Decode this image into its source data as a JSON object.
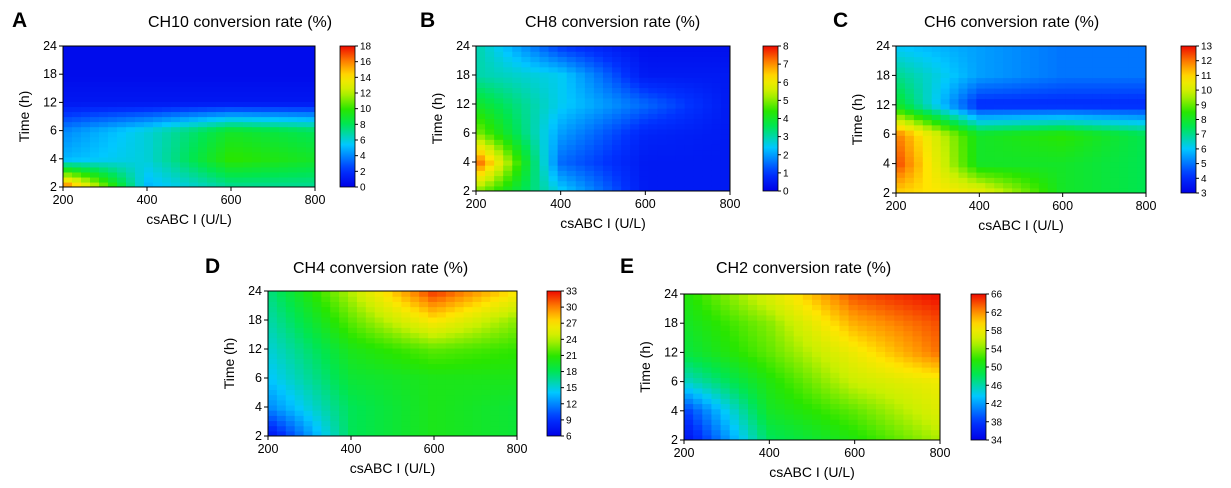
{
  "chart_data": [
    {
      "type": "heatmap",
      "panel": "A",
      "title": "CH10 conversion rate (%)",
      "xlabel": "csABC I (U/L)",
      "ylabel": "Time (h)",
      "x": [
        200,
        400,
        600,
        800
      ],
      "y": [
        2,
        4,
        6,
        12,
        18,
        24
      ],
      "x_tick_labels": [
        "200",
        "400",
        "600",
        "800"
      ],
      "y_tick_labels": [
        "2",
        "4",
        "6",
        "12",
        "18",
        "24"
      ],
      "z": [
        [
          17,
          5,
          7,
          7
        ],
        [
          5,
          6,
          10,
          9
        ],
        [
          4,
          6,
          9,
          8
        ],
        [
          1,
          1,
          1,
          1
        ],
        [
          0.5,
          0.5,
          0.5,
          0.5
        ],
        [
          0.5,
          0.5,
          0.5,
          0.5
        ]
      ],
      "zlim": [
        0,
        18
      ],
      "colorbar_ticks": [
        "0",
        "2",
        "4",
        "6",
        "8",
        "10",
        "12",
        "14",
        "16",
        "18"
      ],
      "colormap": "jet"
    },
    {
      "type": "heatmap",
      "panel": "B",
      "title": "CH8 conversion rate (%)",
      "xlabel": "csABC I (U/L)",
      "ylabel": "Time (h)",
      "x": [
        200,
        400,
        600,
        800
      ],
      "y": [
        2,
        4,
        6,
        12,
        18,
        24
      ],
      "x_tick_labels": [
        "200",
        "400",
        "600",
        "800"
      ],
      "y_tick_labels": [
        "2",
        "4",
        "6",
        "12",
        "18",
        "24"
      ],
      "z": [
        [
          5,
          2.5,
          0.5,
          0.5
        ],
        [
          7.5,
          1.5,
          0.5,
          0.5
        ],
        [
          5,
          2,
          0.7,
          0.5
        ],
        [
          4,
          2.5,
          1.5,
          0.5
        ],
        [
          3,
          2.5,
          0.5,
          0.5
        ],
        [
          3,
          1,
          0.3,
          0.3
        ]
      ],
      "zlim": [
        0,
        8
      ],
      "colorbar_ticks": [
        "0",
        "1",
        "2",
        "3",
        "4",
        "5",
        "6",
        "7",
        "8"
      ],
      "colormap": "jet"
    },
    {
      "type": "heatmap",
      "panel": "C",
      "title": "CH6 conversion rate (%)",
      "xlabel": "csABC I (U/L)",
      "ylabel": "Time (h)",
      "x": [
        200,
        400,
        600,
        800
      ],
      "y": [
        2,
        4,
        6,
        12,
        18,
        24
      ],
      "x_tick_labels": [
        "200",
        "400",
        "600",
        "800"
      ],
      "y_tick_labels": [
        "2",
        "4",
        "6",
        "12",
        "18",
        "24"
      ],
      "z": [
        [
          11,
          10.5,
          8,
          7.5
        ],
        [
          12.5,
          8,
          8,
          7.5
        ],
        [
          12,
          8,
          8.5,
          7.5
        ],
        [
          8,
          4,
          4,
          4
        ],
        [
          7,
          5.5,
          5,
          5
        ],
        [
          6,
          5.5,
          5,
          5
        ]
      ],
      "zlim": [
        3,
        13
      ],
      "colorbar_ticks": [
        "3",
        "4",
        "5",
        "6",
        "7",
        "8",
        "9",
        "10",
        "11",
        "12",
        "13"
      ],
      "colormap": "jet"
    },
    {
      "type": "heatmap",
      "panel": "D",
      "title": "CH4 conversion rate (%)",
      "xlabel": "csABC I (U/L)",
      "ylabel": "Time (h)",
      "x": [
        200,
        400,
        600,
        800
      ],
      "y": [
        2,
        4,
        6,
        12,
        18,
        24
      ],
      "x_tick_labels": [
        "200",
        "400",
        "600",
        "800"
      ],
      "y_tick_labels": [
        "2",
        "4",
        "6",
        "12",
        "18",
        "24"
      ],
      "z": [
        [
          7,
          18,
          20,
          19
        ],
        [
          12,
          18,
          20,
          19
        ],
        [
          14,
          19,
          20,
          20
        ],
        [
          15,
          20,
          22,
          21
        ],
        [
          16,
          22,
          27,
          23
        ],
        [
          17,
          24,
          32,
          27
        ]
      ],
      "zlim": [
        6,
        33
      ],
      "colorbar_ticks": [
        "6",
        "9",
        "12",
        "15",
        "18",
        "21",
        "24",
        "27",
        "30",
        "33"
      ],
      "colormap": "jet"
    },
    {
      "type": "heatmap",
      "panel": "E",
      "title": "CH2 conversion rate (%)",
      "xlabel": "csABC I (U/L)",
      "ylabel": "Time (h)",
      "x": [
        200,
        400,
        600,
        800
      ],
      "y": [
        2,
        4,
        6,
        12,
        18,
        24
      ],
      "x_tick_labels": [
        "200",
        "400",
        "600",
        "800"
      ],
      "y_tick_labels": [
        "2",
        "4",
        "6",
        "12",
        "18",
        "24"
      ],
      "z": [
        [
          35,
          48,
          51,
          55
        ],
        [
          38,
          50,
          53,
          57
        ],
        [
          45,
          51,
          56,
          58
        ],
        [
          49,
          53,
          58,
          63
        ],
        [
          50,
          54,
          61,
          64
        ],
        [
          51,
          57,
          64,
          66
        ]
      ],
      "zlim": [
        34,
        66
      ],
      "colorbar_ticks": [
        "34",
        "38",
        "42",
        "46",
        "50",
        "54",
        "58",
        "62",
        "66"
      ],
      "colormap": "jet"
    }
  ]
}
